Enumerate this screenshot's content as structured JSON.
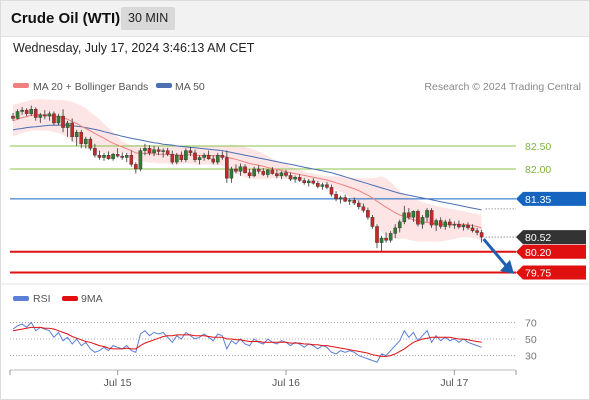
{
  "header": {
    "title": "Crude Oil (WTI)",
    "timeframe": "30 MIN"
  },
  "datetime": "Wednesday, July 17, 2024 3:46:13 AM CET",
  "legend": {
    "ma20_label": "MA 20 + Bollinger Bands",
    "ma50_label": "MA 50",
    "credit": "Research © 2024 Trading Central"
  },
  "rsi_legend": {
    "rsi_label": "RSI",
    "ma_label": "9MA"
  },
  "colors": {
    "candle_up": "#2e7d32",
    "candle_down": "#c62828",
    "ma20": "#f08080",
    "bollinger_fill": "#fde0e0",
    "ma50": "#4a6fb3",
    "resistance": "#8bc34a",
    "pivot": "#1565c0",
    "support": "#e01010",
    "price_tag": "#333333",
    "arrow": "#1f5fb0",
    "rsi": "#5b7fd6",
    "rsi_ma": "#e01010"
  },
  "chart_data": {
    "type": "candlestick",
    "ylim": [
      79.5,
      83.5
    ],
    "levels": [
      {
        "label": "82.50",
        "value": 82.5,
        "kind": "resistance"
      },
      {
        "label": "82.00",
        "value": 82.0,
        "kind": "resistance"
      },
      {
        "label": "81.35",
        "value": 81.35,
        "kind": "pivot"
      },
      {
        "label": "80.52",
        "value": 80.52,
        "kind": "last"
      },
      {
        "label": "80.20",
        "value": 80.2,
        "kind": "support"
      },
      {
        "label": "79.75",
        "value": 79.75,
        "kind": "support"
      }
    ],
    "x_ticks": [
      "Jul 15",
      "Jul 16",
      "Jul 17"
    ],
    "candles": [
      [
        83.15,
        83.22,
        83.05,
        83.1
      ],
      [
        83.1,
        83.3,
        83.08,
        83.25
      ],
      [
        83.25,
        83.35,
        83.18,
        83.28
      ],
      [
        83.28,
        83.32,
        83.15,
        83.2
      ],
      [
        83.2,
        83.38,
        83.15,
        83.3
      ],
      [
        83.3,
        83.34,
        83.05,
        83.12
      ],
      [
        83.12,
        83.22,
        83.0,
        83.18
      ],
      [
        83.18,
        83.28,
        83.08,
        83.15
      ],
      [
        83.15,
        83.25,
        83.05,
        83.2
      ],
      [
        83.2,
        83.25,
        82.95,
        83.0
      ],
      [
        83.0,
        83.2,
        82.95,
        83.15
      ],
      [
        83.15,
        83.3,
        82.8,
        82.9
      ],
      [
        82.9,
        83.05,
        82.7,
        83.0
      ],
      [
        83.0,
        83.1,
        82.6,
        82.7
      ],
      [
        82.7,
        82.85,
        82.5,
        82.8
      ],
      [
        82.8,
        82.85,
        82.45,
        82.55
      ],
      [
        82.55,
        82.7,
        82.45,
        82.65
      ],
      [
        82.65,
        82.7,
        82.4,
        82.45
      ],
      [
        82.45,
        82.55,
        82.25,
        82.3
      ],
      [
        82.3,
        82.4,
        82.2,
        82.25
      ],
      [
        82.25,
        82.35,
        82.18,
        82.3
      ],
      [
        82.3,
        82.38,
        82.2,
        82.22
      ],
      [
        82.22,
        82.35,
        82.18,
        82.32
      ],
      [
        82.32,
        82.45,
        82.25,
        82.28
      ],
      [
        82.28,
        82.36,
        82.2,
        82.25
      ],
      [
        82.25,
        82.35,
        82.15,
        82.3
      ],
      [
        82.3,
        82.4,
        82.05,
        82.1
      ],
      [
        82.1,
        82.15,
        81.9,
        82.0
      ],
      [
        82.0,
        82.45,
        81.95,
        82.4
      ],
      [
        82.4,
        82.55,
        82.3,
        82.45
      ],
      [
        82.45,
        82.52,
        82.3,
        82.35
      ],
      [
        82.35,
        82.5,
        82.28,
        82.42
      ],
      [
        82.42,
        82.48,
        82.3,
        82.38
      ],
      [
        82.38,
        82.45,
        82.25,
        82.4
      ],
      [
        82.4,
        82.46,
        82.28,
        82.32
      ],
      [
        82.32,
        82.4,
        82.1,
        82.15
      ],
      [
        82.15,
        82.35,
        82.1,
        82.3
      ],
      [
        82.3,
        82.38,
        82.15,
        82.2
      ],
      [
        82.2,
        82.45,
        82.15,
        82.4
      ],
      [
        82.4,
        82.48,
        82.28,
        82.35
      ],
      [
        82.35,
        82.42,
        82.15,
        82.2
      ],
      [
        82.2,
        82.3,
        82.1,
        82.25
      ],
      [
        82.25,
        82.35,
        82.18,
        82.3
      ],
      [
        82.3,
        82.4,
        82.2,
        82.22
      ],
      [
        82.22,
        82.3,
        82.1,
        82.15
      ],
      [
        82.15,
        82.35,
        82.1,
        82.3
      ],
      [
        82.3,
        82.38,
        82.2,
        82.25
      ],
      [
        82.25,
        82.4,
        81.7,
        81.8
      ],
      [
        81.8,
        82.05,
        81.7,
        82.0
      ],
      [
        82.0,
        82.1,
        81.9,
        81.95
      ],
      [
        81.95,
        82.12,
        81.85,
        82.05
      ],
      [
        82.05,
        82.1,
        81.9,
        81.92
      ],
      [
        81.92,
        82.0,
        81.8,
        81.85
      ],
      [
        81.85,
        82.05,
        81.82,
        82.0
      ],
      [
        82.0,
        82.08,
        81.9,
        81.95
      ],
      [
        81.95,
        82.02,
        81.85,
        81.88
      ],
      [
        81.88,
        82.0,
        81.82,
        81.98
      ],
      [
        81.98,
        82.04,
        81.88,
        81.9
      ],
      [
        81.9,
        81.98,
        81.8,
        81.85
      ],
      [
        81.85,
        81.95,
        81.78,
        81.92
      ],
      [
        81.92,
        81.98,
        81.82,
        81.86
      ],
      [
        81.86,
        81.92,
        81.74,
        81.78
      ],
      [
        81.78,
        81.86,
        81.7,
        81.82
      ],
      [
        81.82,
        81.88,
        81.72,
        81.75
      ],
      [
        81.75,
        81.8,
        81.66,
        81.7
      ],
      [
        81.7,
        81.78,
        81.62,
        81.74
      ],
      [
        81.74,
        81.8,
        81.66,
        81.69
      ],
      [
        81.69,
        81.74,
        81.58,
        81.62
      ],
      [
        81.62,
        81.7,
        81.55,
        81.66
      ],
      [
        81.66,
        81.72,
        81.56,
        81.6
      ],
      [
        81.6,
        81.66,
        81.4,
        81.45
      ],
      [
        81.45,
        81.52,
        81.3,
        81.35
      ],
      [
        81.35,
        81.42,
        81.25,
        81.38
      ],
      [
        81.38,
        81.44,
        81.28,
        81.3
      ],
      [
        81.3,
        81.36,
        81.22,
        81.32
      ],
      [
        81.32,
        81.38,
        81.22,
        81.26
      ],
      [
        81.26,
        81.32,
        81.12,
        81.18
      ],
      [
        81.18,
        81.25,
        81.05,
        81.1
      ],
      [
        81.1,
        81.16,
        80.9,
        80.95
      ],
      [
        80.95,
        81.0,
        80.7,
        80.75
      ],
      [
        80.75,
        80.8,
        80.28,
        80.4
      ],
      [
        80.4,
        80.55,
        80.22,
        80.5
      ],
      [
        80.5,
        80.62,
        80.4,
        80.45
      ],
      [
        80.45,
        80.65,
        80.4,
        80.6
      ],
      [
        80.6,
        80.8,
        80.5,
        80.72
      ],
      [
        80.72,
        80.9,
        80.62,
        80.85
      ],
      [
        80.85,
        81.2,
        80.8,
        81.05
      ],
      [
        81.05,
        81.15,
        80.9,
        80.95
      ],
      [
        80.95,
        81.1,
        80.85,
        81.08
      ],
      [
        81.08,
        81.12,
        80.75,
        80.8
      ],
      [
        80.8,
        81.0,
        80.7,
        80.95
      ],
      [
        80.95,
        81.15,
        80.85,
        81.1
      ],
      [
        81.1,
        81.15,
        80.72,
        80.78
      ],
      [
        80.78,
        80.92,
        80.65,
        80.88
      ],
      [
        80.88,
        80.95,
        80.7,
        80.75
      ],
      [
        80.75,
        80.9,
        80.68,
        80.85
      ],
      [
        80.85,
        80.92,
        80.72,
        80.78
      ],
      [
        80.78,
        80.86,
        80.7,
        80.8
      ],
      [
        80.8,
        80.88,
        80.7,
        80.74
      ],
      [
        80.74,
        80.82,
        80.66,
        80.78
      ],
      [
        80.78,
        80.84,
        80.68,
        80.72
      ],
      [
        80.72,
        80.8,
        80.62,
        80.66
      ],
      [
        80.66,
        80.72,
        80.56,
        80.62
      ],
      [
        80.62,
        80.68,
        80.4,
        80.52
      ]
    ],
    "ma20": [
      83.05,
      83.08,
      83.12,
      83.14,
      83.17,
      83.18,
      83.18,
      83.17,
      83.17,
      83.15,
      83.14,
      83.12,
      83.08,
      83.03,
      82.99,
      82.93,
      82.88,
      82.83,
      82.77,
      82.72,
      82.67,
      82.61,
      82.56,
      82.52,
      82.48,
      82.44,
      82.4,
      82.35,
      82.34,
      82.34,
      82.33,
      82.33,
      82.32,
      82.32,
      82.32,
      82.31,
      82.31,
      82.3,
      82.31,
      82.31,
      82.3,
      82.29,
      82.3,
      82.3,
      82.29,
      82.29,
      82.29,
      82.26,
      82.23,
      82.21,
      82.18,
      82.15,
      82.12,
      82.1,
      82.08,
      82.06,
      82.03,
      82.01,
      81.99,
      81.97,
      81.94,
      81.92,
      81.9,
      81.88,
      81.86,
      81.84,
      81.82,
      81.8,
      81.78,
      81.76,
      81.73,
      81.7,
      81.67,
      81.64,
      81.6,
      81.57,
      81.53,
      81.48,
      81.43,
      81.37,
      81.3,
      81.23,
      81.17,
      81.11,
      81.05,
      81.0,
      80.97,
      80.93,
      80.9,
      80.87,
      80.85,
      80.84,
      80.82,
      80.81,
      80.8,
      80.8,
      80.8,
      80.8,
      80.8,
      80.8,
      80.79,
      80.77,
      80.75,
      80.72
    ],
    "bb_upper": [
      83.4,
      83.42,
      83.45,
      83.47,
      83.5,
      83.52,
      83.52,
      83.51,
      83.51,
      83.5,
      83.5,
      83.5,
      83.48,
      83.46,
      83.42,
      83.38,
      83.32,
      83.24,
      83.16,
      83.08,
      82.98,
      82.9,
      82.8,
      82.7,
      82.6,
      82.55,
      82.52,
      82.52,
      82.52,
      82.52,
      82.52,
      82.52,
      82.52,
      82.52,
      82.52,
      82.52,
      82.52,
      82.5,
      82.5,
      82.5,
      82.5,
      82.5,
      82.5,
      82.5,
      82.5,
      82.5,
      82.5,
      82.52,
      82.52,
      82.52,
      82.5,
      82.48,
      82.45,
      82.42,
      82.38,
      82.34,
      82.28,
      82.22,
      82.18,
      82.14,
      82.1,
      82.06,
      82.02,
      81.98,
      81.95,
      81.92,
      81.9,
      81.88,
      81.86,
      81.84,
      81.84,
      81.84,
      81.84,
      81.83,
      81.82,
      81.8,
      81.8,
      81.8,
      81.8,
      81.8,
      81.82,
      81.84,
      81.8,
      81.72,
      81.62,
      81.52,
      81.45,
      81.4,
      81.36,
      81.32,
      81.28,
      81.25,
      81.22,
      81.2,
      81.18,
      81.16,
      81.14,
      81.12,
      81.1,
      81.08,
      81.06,
      81.04,
      81.02,
      81.0
    ],
    "bb_lower": [
      82.7,
      82.74,
      82.79,
      82.81,
      82.84,
      82.84,
      82.84,
      82.83,
      82.83,
      82.8,
      82.78,
      82.74,
      82.68,
      82.6,
      82.56,
      82.48,
      82.44,
      82.42,
      82.38,
      82.36,
      82.36,
      82.32,
      82.32,
      82.34,
      82.36,
      82.33,
      82.28,
      82.18,
      82.16,
      82.16,
      82.14,
      82.14,
      82.12,
      82.12,
      82.12,
      82.1,
      82.1,
      82.1,
      82.12,
      82.12,
      82.1,
      82.08,
      82.1,
      82.1,
      82.08,
      82.08,
      82.08,
      82.0,
      81.94,
      81.9,
      81.86,
      81.82,
      81.79,
      81.78,
      81.78,
      81.78,
      81.78,
      81.8,
      81.8,
      81.8,
      81.78,
      81.78,
      81.78,
      81.78,
      81.77,
      81.76,
      81.74,
      81.72,
      81.7,
      81.68,
      81.62,
      81.56,
      81.5,
      81.45,
      81.38,
      81.34,
      81.26,
      81.16,
      81.06,
      80.94,
      80.78,
      80.62,
      80.54,
      80.5,
      80.48,
      80.48,
      80.49,
      80.46,
      80.44,
      80.42,
      80.42,
      80.43,
      80.42,
      80.42,
      80.42,
      80.44,
      80.46,
      80.48,
      80.5,
      80.52,
      80.52,
      80.5,
      80.48,
      80.44
    ],
    "ma50": [
      82.85,
      82.87,
      82.88,
      82.9,
      82.91,
      82.92,
      82.93,
      82.94,
      82.95,
      82.95,
      82.95,
      82.96,
      82.95,
      82.94,
      82.93,
      82.92,
      82.9,
      82.88,
      82.86,
      82.84,
      82.81,
      82.79,
      82.76,
      82.74,
      82.71,
      82.69,
      82.67,
      82.65,
      82.63,
      82.61,
      82.59,
      82.57,
      82.56,
      82.54,
      82.53,
      82.52,
      82.5,
      82.49,
      82.48,
      82.47,
      82.46,
      82.45,
      82.44,
      82.43,
      82.42,
      82.41,
      82.4,
      82.38,
      82.36,
      82.34,
      82.32,
      82.3,
      82.28,
      82.26,
      82.24,
      82.22,
      82.2,
      82.18,
      82.16,
      82.14,
      82.12,
      82.1,
      82.08,
      82.06,
      82.04,
      82.02,
      82.0,
      81.98,
      81.96,
      81.94,
      81.92,
      81.89,
      81.86,
      81.83,
      81.8,
      81.77,
      81.74,
      81.71,
      81.68,
      81.65,
      81.62,
      81.59,
      81.56,
      81.53,
      81.5,
      81.47,
      81.45,
      81.43,
      81.41,
      81.39,
      81.37,
      81.35,
      81.33,
      81.31,
      81.29,
      81.27,
      81.25,
      81.23,
      81.21,
      81.19,
      81.17,
      81.15,
      81.13,
      81.11
    ],
    "rsi": {
      "ylim": [
        15,
        85
      ],
      "levels": [
        70,
        50,
        30
      ],
      "rsi_values": [
        62,
        66,
        68,
        64,
        70,
        60,
        64,
        62,
        60,
        52,
        58,
        48,
        52,
        44,
        50,
        42,
        46,
        38,
        34,
        36,
        40,
        36,
        42,
        40,
        38,
        42,
        36,
        34,
        56,
        60,
        54,
        58,
        56,
        58,
        52,
        46,
        54,
        50,
        58,
        54,
        50,
        52,
        56,
        52,
        48,
        56,
        54,
        38,
        48,
        44,
        50,
        44,
        42,
        50,
        46,
        44,
        50,
        46,
        44,
        48,
        46,
        42,
        46,
        44,
        40,
        44,
        42,
        38,
        42,
        40,
        34,
        32,
        36,
        34,
        36,
        34,
        30,
        28,
        26,
        24,
        22,
        32,
        30,
        36,
        42,
        48,
        60,
        52,
        58,
        48,
        54,
        60,
        46,
        54,
        48,
        52,
        48,
        50,
        46,
        50,
        46,
        44,
        42,
        40
      ],
      "ma_values": [
        60,
        61,
        62,
        63,
        64,
        64,
        64,
        63,
        63,
        62,
        60,
        58,
        56,
        53,
        51,
        49,
        47,
        46,
        44,
        42,
        41,
        39,
        38,
        38,
        38,
        39,
        38,
        38,
        42,
        45,
        47,
        49,
        51,
        53,
        54,
        54,
        55,
        55,
        55,
        55,
        54,
        54,
        54,
        53,
        52,
        52,
        52,
        50,
        50,
        49,
        49,
        48,
        47,
        47,
        47,
        46,
        46,
        46,
        46,
        46,
        46,
        45,
        45,
        45,
        44,
        44,
        43,
        43,
        42,
        42,
        41,
        40,
        39,
        38,
        37,
        36,
        35,
        34,
        33,
        31,
        30,
        29,
        29,
        30,
        32,
        35,
        38,
        42,
        46,
        48,
        50,
        51,
        52,
        52,
        52,
        52,
        52,
        51,
        50,
        50,
        49,
        48,
        47,
        46
      ]
    }
  }
}
